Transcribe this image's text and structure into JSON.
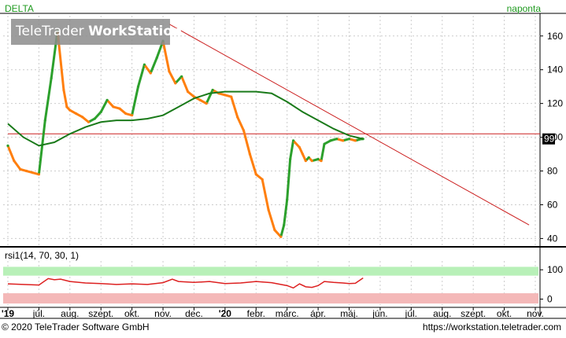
{
  "header": {
    "symbol": "DELTA",
    "period": "naponta"
  },
  "watermark": {
    "brand_light": "TeleTrader ",
    "brand_bold": "WorkStation"
  },
  "footer": {
    "copyright": "© 2020 TeleTrader Software GmbH",
    "url": "https://workstation.teletrader.com"
  },
  "rsi_panel": {
    "label": "rsi1(14, 70, 30, 1)"
  },
  "colors": {
    "price_up": "#2ca02c",
    "price_down": "#ff7f0e",
    "moving_average": "#1a7a1a",
    "trend_line": "#cc2020",
    "hline": "#cc2020",
    "rsi_line": "#dd2020",
    "overbought_zone": "#b8f0b8",
    "oversold_zone": "#f4b8b8",
    "grid": "#cccccc"
  },
  "chart_data": [
    {
      "type": "line",
      "panel": "price",
      "y_ticks": [
        40,
        60,
        80,
        100,
        120,
        140,
        160
      ],
      "ylim": [
        36,
        172
      ],
      "last_value": "99",
      "x_labels": [
        "'19",
        "júl.",
        "aug.",
        "szept.",
        "okt.",
        "nov.",
        "dec.",
        "'20",
        "febr.",
        "márc.",
        "ápr.",
        "máj.",
        "jún.",
        "júl.",
        "aug.",
        "szept.",
        "okt.",
        "nov."
      ],
      "x_positions": [
        0,
        1,
        2,
        3,
        4,
        5,
        6,
        7,
        8,
        9,
        10,
        11,
        12,
        13,
        14,
        15,
        16,
        17
      ],
      "data_end_x": 11.45,
      "series": [
        {
          "role": "price",
          "x": [
            0,
            0.2,
            0.4,
            0.6,
            0.8,
            1.0,
            1.2,
            1.4,
            1.6,
            1.8,
            1.9,
            2.0,
            2.2,
            2.4,
            2.6,
            2.8,
            3.0,
            3.2,
            3.4,
            3.6,
            3.8,
            4.0,
            4.2,
            4.4,
            4.6,
            4.8,
            5.0,
            5.2,
            5.4,
            5.6,
            5.8,
            6.0,
            6.2,
            6.4,
            6.6,
            6.8,
            7.0,
            7.2,
            7.4,
            7.6,
            7.8,
            8.0,
            8.2,
            8.4,
            8.6,
            8.8,
            8.9,
            9.0,
            9.1,
            9.2,
            9.4,
            9.5,
            9.6,
            9.7,
            9.8,
            10.0,
            10.1,
            10.2,
            10.4,
            10.6,
            10.8,
            11.0,
            11.2,
            11.4,
            11.45
          ],
          "y": [
            95,
            86,
            81,
            80,
            79,
            78,
            110,
            135,
            163,
            128,
            118,
            116,
            114,
            112,
            109,
            111,
            115,
            122,
            118,
            117,
            114,
            113,
            130,
            143,
            138,
            147,
            157,
            139,
            132,
            136,
            127,
            124,
            122,
            120,
            128,
            126,
            125,
            124,
            112,
            104,
            90,
            78,
            75,
            57,
            45,
            41,
            48,
            63,
            87,
            98,
            94,
            90,
            86,
            88,
            86,
            87,
            86,
            96,
            98,
            99,
            98,
            99,
            98,
            99,
            99
          ]
        },
        {
          "role": "moving_average",
          "x": [
            0,
            0.5,
            1.0,
            1.5,
            2.0,
            2.5,
            3.0,
            3.5,
            4.0,
            4.5,
            5.0,
            5.5,
            6.0,
            6.5,
            7.0,
            7.5,
            8.0,
            8.5,
            9.0,
            9.5,
            10.0,
            10.5,
            11.0,
            11.45
          ],
          "y": [
            108,
            100,
            95,
            97,
            102,
            106,
            109,
            110,
            110,
            111,
            113,
            118,
            123,
            126,
            127,
            127,
            127,
            126,
            121,
            115,
            110,
            105,
            101,
            99
          ]
        },
        {
          "role": "trend_line",
          "x": [
            5.2,
            16.8
          ],
          "y": [
            167,
            48
          ]
        },
        {
          "role": "horizontal_line",
          "x": [
            0,
            17
          ],
          "y": [
            102,
            102
          ]
        }
      ]
    },
    {
      "type": "line",
      "panel": "rsi",
      "y_ticks": [
        0,
        100
      ],
      "ylim": [
        -20,
        130
      ],
      "zones": {
        "oversold": [
          -15,
          20
        ],
        "overbought": [
          80,
          110
        ]
      },
      "series": [
        {
          "role": "rsi",
          "x": [
            0,
            0.5,
            1.0,
            1.3,
            1.5,
            1.7,
            2.0,
            2.5,
            3.0,
            3.5,
            4.0,
            4.5,
            5.0,
            5.3,
            5.5,
            6.0,
            6.5,
            7.0,
            7.5,
            8.0,
            8.5,
            9.0,
            9.2,
            9.4,
            9.6,
            9.8,
            10.0,
            10.2,
            10.5,
            10.8,
            11.0,
            11.2,
            11.45
          ],
          "y": [
            52,
            50,
            48,
            70,
            66,
            68,
            60,
            55,
            53,
            50,
            52,
            50,
            56,
            68,
            60,
            57,
            60,
            53,
            55,
            60,
            56,
            46,
            38,
            52,
            42,
            40,
            46,
            60,
            57,
            55,
            53,
            54,
            72
          ]
        }
      ]
    }
  ]
}
